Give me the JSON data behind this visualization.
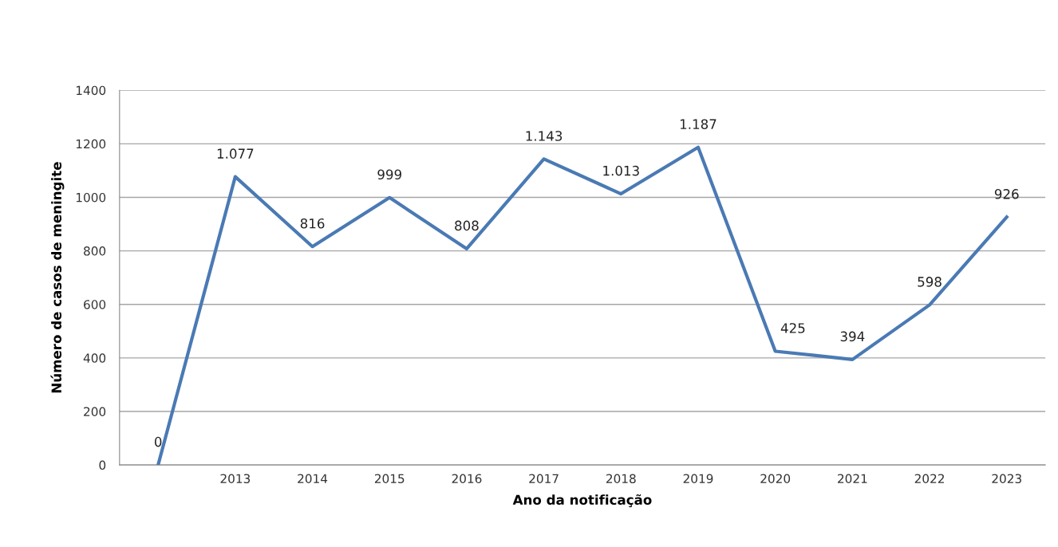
{
  "chart_data": {
    "type": "line",
    "xlabel": "Ano da notificação",
    "ylabel": "Número de casos de meningite",
    "categories": [
      null,
      "2013",
      "2014",
      "2015",
      "2016",
      "2017",
      "2018",
      "2019",
      "2020",
      "2021",
      "2022",
      "2023"
    ],
    "series": [
      {
        "color": "#4a7ab4",
        "values": [
          0,
          1077,
          816,
          999,
          808,
          1143,
          1013,
          1187,
          425,
          394,
          598,
          926
        ],
        "value_labels": [
          "0",
          "1.077",
          "816",
          "999",
          "808",
          "1.143",
          "1.013",
          "1.187",
          "425",
          "394",
          "598",
          "926"
        ]
      }
    ],
    "ylim": [
      0,
      1400
    ],
    "yticks": [
      0,
      200,
      400,
      600,
      800,
      1000,
      1200,
      1400
    ],
    "grid": "y",
    "legend": false,
    "marker": "none",
    "line_style": "solid"
  }
}
